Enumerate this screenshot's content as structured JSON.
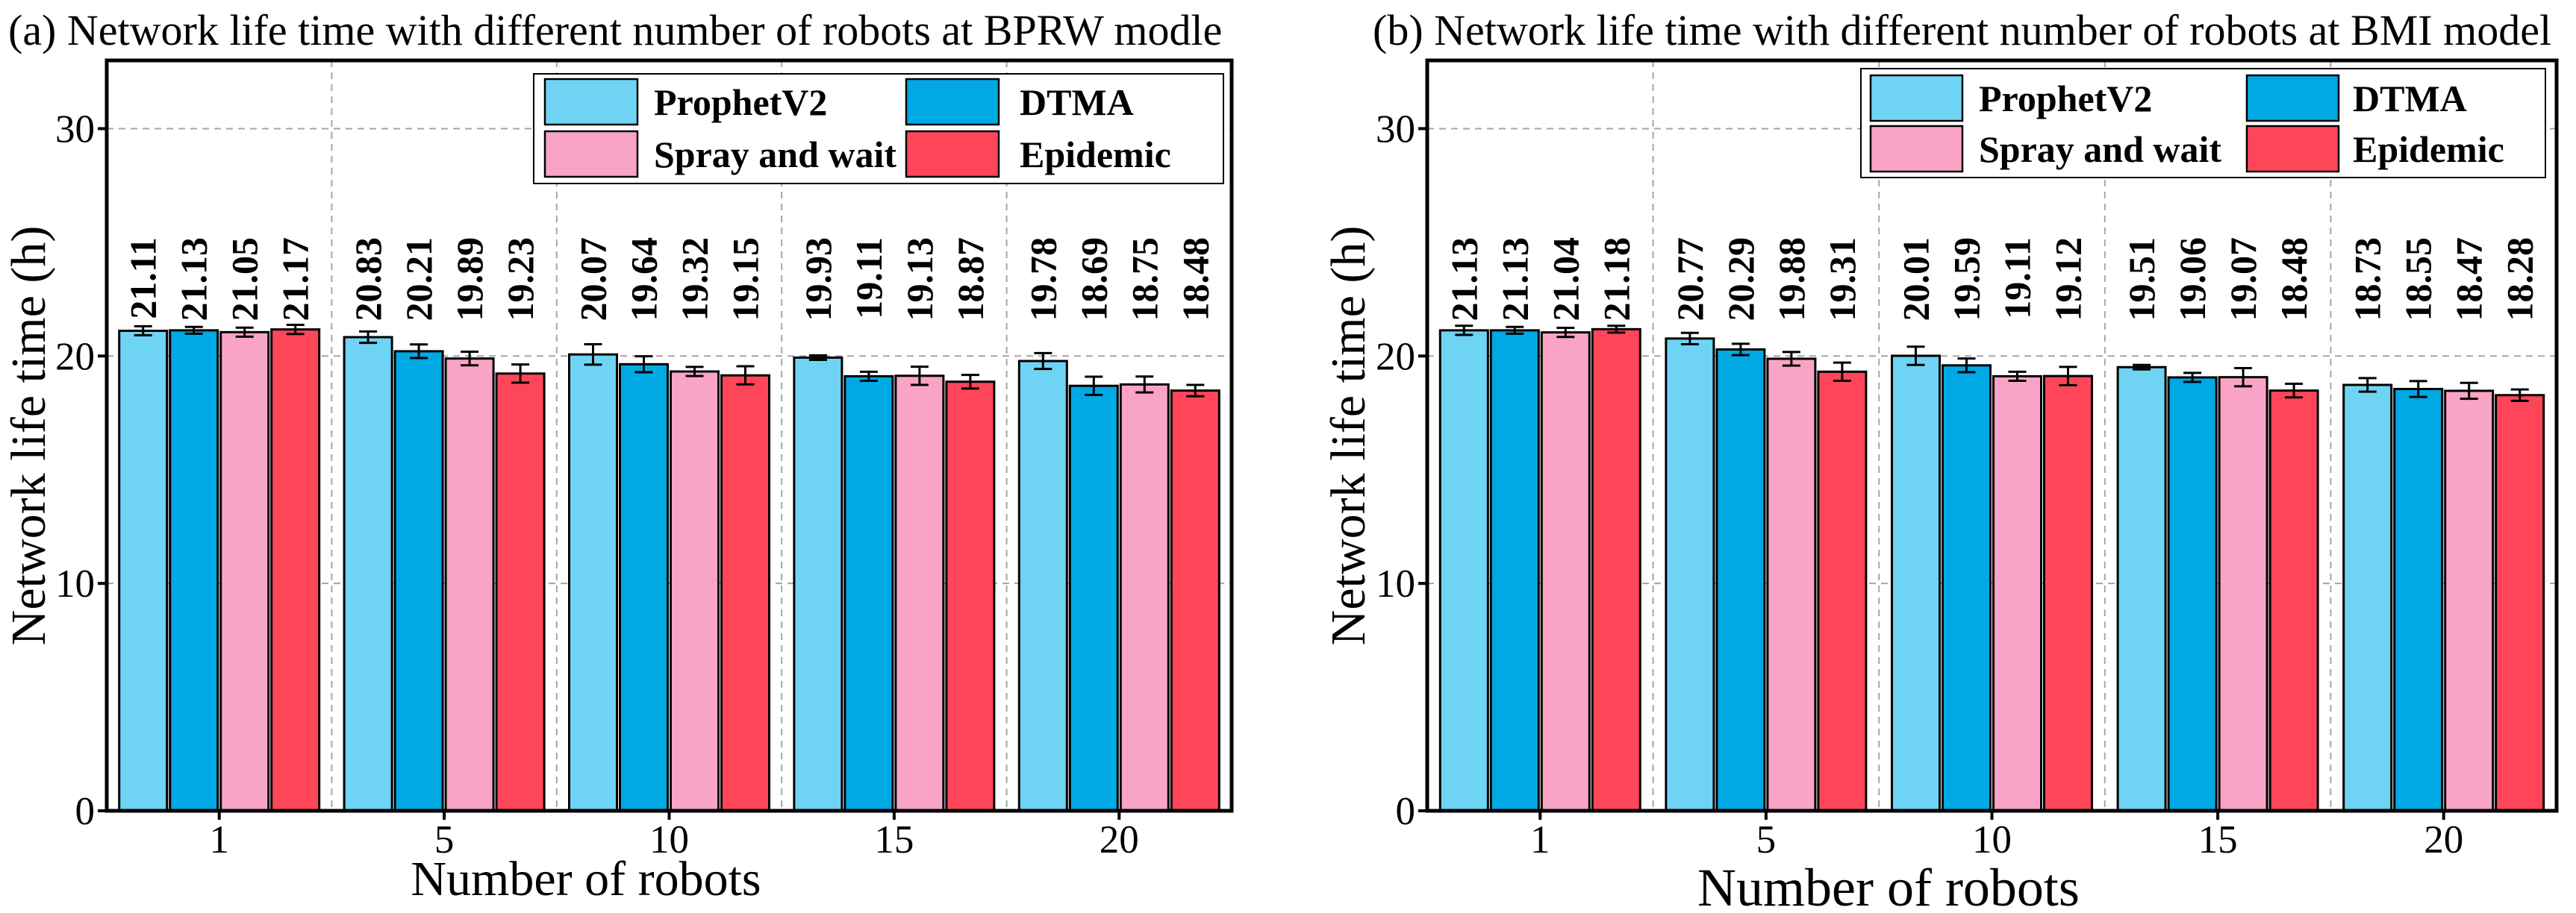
{
  "chart_data": [
    {
      "type": "bar",
      "title": "(a) Network life time with different number of robots at BPRW modle",
      "xlabel": "Number of robots",
      "ylabel": "Network life time (h)",
      "categories": [
        "1",
        "5",
        "10",
        "15",
        "20"
      ],
      "ylim": [
        0,
        33
      ],
      "yticks": [
        0,
        10,
        20,
        30
      ],
      "grid": true,
      "legend": "top-right",
      "series": [
        {
          "name": "ProphetV2",
          "color": "#6fd4f4",
          "values": [
            21.11,
            20.83,
            20.07,
            19.93,
            19.78
          ],
          "errors": [
            0.2,
            0.25,
            0.45,
            0.1,
            0.35
          ]
        },
        {
          "name": "DTMA",
          "color": "#00a9e4",
          "values": [
            21.13,
            20.21,
            19.64,
            19.11,
            18.69
          ],
          "errors": [
            0.15,
            0.3,
            0.35,
            0.2,
            0.4
          ]
        },
        {
          "name": "Spray and wait",
          "color": "#f9a4c6",
          "values": [
            21.05,
            19.89,
            19.32,
            19.13,
            18.75
          ],
          "errors": [
            0.2,
            0.3,
            0.2,
            0.4,
            0.35
          ]
        },
        {
          "name": "Epidemic",
          "color": "#ff4659",
          "values": [
            21.17,
            19.23,
            19.15,
            18.87,
            18.48
          ],
          "errors": [
            0.2,
            0.4,
            0.4,
            0.3,
            0.25
          ]
        }
      ]
    },
    {
      "type": "bar",
      "title": "(b) Network life time with different number of robots at BMI model",
      "xlabel": "Number of robots",
      "ylabel": "Network life time (h)",
      "categories": [
        "1",
        "5",
        "10",
        "15",
        "20"
      ],
      "ylim": [
        0,
        33
      ],
      "yticks": [
        0,
        10,
        20,
        30
      ],
      "grid": true,
      "legend": "top-right",
      "series": [
        {
          "name": "ProphetV2",
          "color": "#6fd4f4",
          "values": [
            21.13,
            20.77,
            20.01,
            19.51,
            18.73
          ],
          "errors": [
            0.2,
            0.25,
            0.4,
            0.1,
            0.3
          ]
        },
        {
          "name": "DTMA",
          "color": "#00a9e4",
          "values": [
            21.13,
            20.29,
            19.59,
            19.06,
            18.55
          ],
          "errors": [
            0.15,
            0.25,
            0.3,
            0.2,
            0.35
          ]
        },
        {
          "name": "Spray and wait",
          "color": "#f9a4c6",
          "values": [
            21.04,
            19.88,
            19.11,
            19.07,
            18.47
          ],
          "errors": [
            0.2,
            0.3,
            0.2,
            0.4,
            0.35
          ]
        },
        {
          "name": "Epidemic",
          "color": "#ff4659",
          "values": [
            21.18,
            19.31,
            19.12,
            18.48,
            18.28
          ],
          "errors": [
            0.15,
            0.4,
            0.4,
            0.3,
            0.25
          ]
        }
      ]
    }
  ]
}
